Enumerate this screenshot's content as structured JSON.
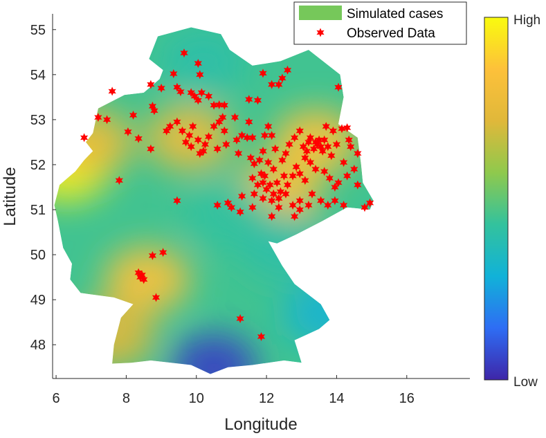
{
  "chart_data": {
    "type": "scatter",
    "title": "",
    "xlabel": "Longitude",
    "ylabel": "Latitude",
    "xlim": [
      5.9,
      17.8
    ],
    "ylim": [
      47.25,
      55.35
    ],
    "xticks": [
      6,
      8,
      10,
      12,
      14,
      16
    ],
    "yticks": [
      48,
      49,
      50,
      51,
      52,
      53,
      54,
      55
    ],
    "grid": false,
    "legend_position": "top-right",
    "legend": [
      "Simulated cases",
      "Observed Data"
    ],
    "colorbar": {
      "min_label": "Low",
      "max_label": "High"
    },
    "colors": {
      "legend_patch": "#76c85a",
      "marker": "#ff0000",
      "colormap": [
        "#3e26a8",
        "#2e6df4",
        "#11b2d8",
        "#33c29d",
        "#8fc94d",
        "#e0b83a",
        "#fdc13a",
        "#f9fb0e"
      ]
    },
    "surface": {
      "name": "Simulated cases",
      "border": [
        [
          9.85,
          55.05
        ],
        [
          10.7,
          54.9
        ],
        [
          10.95,
          54.55
        ],
        [
          11.6,
          54.2
        ],
        [
          12.4,
          54.3
        ],
        [
          13.2,
          54.55
        ],
        [
          14.1,
          54.0
        ],
        [
          14.2,
          53.5
        ],
        [
          14.05,
          52.9
        ],
        [
          14.6,
          52.6
        ],
        [
          14.7,
          52.0
        ],
        [
          14.75,
          51.6
        ],
        [
          15.05,
          51.2
        ],
        [
          14.95,
          51.0
        ],
        [
          14.3,
          51.05
        ],
        [
          13.6,
          50.75
        ],
        [
          12.85,
          50.45
        ],
        [
          12.3,
          50.25
        ],
        [
          12.05,
          50.3
        ],
        [
          12.45,
          49.75
        ],
        [
          12.8,
          49.35
        ],
        [
          13.55,
          48.9
        ],
        [
          13.8,
          48.55
        ],
        [
          13.5,
          48.35
        ],
        [
          12.8,
          48.1
        ],
        [
          13.0,
          47.6
        ],
        [
          12.5,
          47.65
        ],
        [
          11.6,
          47.55
        ],
        [
          10.9,
          47.5
        ],
        [
          10.4,
          47.35
        ],
        [
          9.85,
          47.55
        ],
        [
          8.7,
          47.65
        ],
        [
          8.15,
          47.6
        ],
        [
          7.6,
          47.58
        ],
        [
          7.65,
          48.0
        ],
        [
          7.85,
          48.6
        ],
        [
          8.2,
          48.9
        ],
        [
          7.65,
          49.05
        ],
        [
          6.7,
          49.15
        ],
        [
          6.4,
          49.45
        ],
        [
          6.45,
          49.8
        ],
        [
          6.2,
          50.15
        ],
        [
          6.05,
          50.75
        ],
        [
          5.95,
          51.1
        ],
        [
          6.1,
          51.55
        ],
        [
          6.55,
          51.85
        ],
        [
          6.8,
          52.1
        ],
        [
          7.05,
          52.3
        ],
        [
          6.85,
          52.5
        ],
        [
          7.05,
          52.7
        ],
        [
          7.2,
          53.25
        ],
        [
          7.95,
          53.55
        ],
        [
          8.5,
          53.6
        ],
        [
          8.95,
          53.9
        ],
        [
          9.05,
          54.1
        ],
        [
          8.65,
          54.35
        ],
        [
          8.9,
          54.85
        ],
        [
          9.85,
          55.05
        ]
      ],
      "hotspots": [
        {
          "lon": 6.3,
          "lat": 51.9,
          "level": 0.98
        },
        {
          "lon": 7.0,
          "lat": 52.5,
          "level": 0.78
        },
        {
          "lon": 8.6,
          "lat": 49.45,
          "level": 0.85
        },
        {
          "lon": 9.8,
          "lat": 52.6,
          "level": 0.8
        },
        {
          "lon": 12.3,
          "lat": 51.4,
          "level": 0.85
        },
        {
          "lon": 13.4,
          "lat": 52.5,
          "level": 0.85
        },
        {
          "lon": 10.5,
          "lat": 47.5,
          "level": 0.05
        },
        {
          "lon": 10.9,
          "lat": 50.9,
          "level": 0.42
        },
        {
          "lon": 10.2,
          "lat": 54.3,
          "level": 0.4
        },
        {
          "lon": 12.5,
          "lat": 50.2,
          "level": 0.4
        },
        {
          "lon": 7.6,
          "lat": 48.2,
          "level": 0.72
        },
        {
          "lon": 13.7,
          "lat": 48.7,
          "level": 0.3
        }
      ],
      "base_level": 0.45
    },
    "series": [
      {
        "name": "Observed Data",
        "points": [
          [
            9.65,
            54.48
          ],
          [
            10.05,
            54.25
          ],
          [
            9.35,
            54.02
          ],
          [
            10.1,
            54.0
          ],
          [
            11.9,
            54.03
          ],
          [
            12.15,
            53.78
          ],
          [
            12.35,
            53.78
          ],
          [
            12.45,
            53.92
          ],
          [
            12.6,
            54.1
          ],
          [
            14.05,
            53.72
          ],
          [
            7.6,
            53.63
          ],
          [
            8.7,
            53.78
          ],
          [
            9.0,
            53.7
          ],
          [
            9.45,
            53.72
          ],
          [
            9.55,
            53.62
          ],
          [
            9.85,
            53.6
          ],
          [
            9.95,
            53.52
          ],
          [
            10.15,
            53.6
          ],
          [
            10.35,
            53.52
          ],
          [
            10.05,
            53.43
          ],
          [
            10.5,
            53.32
          ],
          [
            10.65,
            53.33
          ],
          [
            10.8,
            53.32
          ],
          [
            11.5,
            53.45
          ],
          [
            11.75,
            53.43
          ],
          [
            8.2,
            53.1
          ],
          [
            8.75,
            53.3
          ],
          [
            8.8,
            53.2
          ],
          [
            7.2,
            53.05
          ],
          [
            7.45,
            53.0
          ],
          [
            6.8,
            52.6
          ],
          [
            8.05,
            52.73
          ],
          [
            8.35,
            52.58
          ],
          [
            8.7,
            52.35
          ],
          [
            9.15,
            52.75
          ],
          [
            9.25,
            52.85
          ],
          [
            9.45,
            52.95
          ],
          [
            9.6,
            52.75
          ],
          [
            9.7,
            52.5
          ],
          [
            9.8,
            52.65
          ],
          [
            9.85,
            52.4
          ],
          [
            9.9,
            52.85
          ],
          [
            10.05,
            52.55
          ],
          [
            10.1,
            52.25
          ],
          [
            10.2,
            52.3
          ],
          [
            10.25,
            52.45
          ],
          [
            10.35,
            52.62
          ],
          [
            10.5,
            52.85
          ],
          [
            10.6,
            52.35
          ],
          [
            10.65,
            52.95
          ],
          [
            10.75,
            53.05
          ],
          [
            10.8,
            52.75
          ],
          [
            10.85,
            52.45
          ],
          [
            11.1,
            53.05
          ],
          [
            11.15,
            52.55
          ],
          [
            11.2,
            52.25
          ],
          [
            11.3,
            52.65
          ],
          [
            11.45,
            52.6
          ],
          [
            11.5,
            52.95
          ],
          [
            11.6,
            52.6
          ],
          [
            11.55,
            52.15
          ],
          [
            11.65,
            52.02
          ],
          [
            11.9,
            52.3
          ],
          [
            11.95,
            52.65
          ],
          [
            12.05,
            52.85
          ],
          [
            12.15,
            52.65
          ],
          [
            12.25,
            52.35
          ],
          [
            12.45,
            52.1
          ],
          [
            12.55,
            52.25
          ],
          [
            12.65,
            52.45
          ],
          [
            12.8,
            52.6
          ],
          [
            12.95,
            52.75
          ],
          [
            13.05,
            52.4
          ],
          [
            13.1,
            52.15
          ],
          [
            13.15,
            52.3
          ],
          [
            13.2,
            52.5
          ],
          [
            13.25,
            52.6
          ],
          [
            13.35,
            52.35
          ],
          [
            13.4,
            52.5
          ],
          [
            13.45,
            52.45
          ],
          [
            13.5,
            52.55
          ],
          [
            13.55,
            52.4
          ],
          [
            13.6,
            52.3
          ],
          [
            13.65,
            52.55
          ],
          [
            13.7,
            52.85
          ],
          [
            13.75,
            52.4
          ],
          [
            13.85,
            52.2
          ],
          [
            13.9,
            52.75
          ],
          [
            14.0,
            52.45
          ],
          [
            14.2,
            52.05
          ],
          [
            14.35,
            52.55
          ],
          [
            14.4,
            52.4
          ],
          [
            14.6,
            52.25
          ],
          [
            14.3,
            52.82
          ],
          [
            14.15,
            52.8
          ],
          [
            13.25,
            52.05
          ],
          [
            12.85,
            51.95
          ],
          [
            12.75,
            51.75
          ],
          [
            12.95,
            51.8
          ],
          [
            13.1,
            51.65
          ],
          [
            13.4,
            51.9
          ],
          [
            13.65,
            51.85
          ],
          [
            13.8,
            51.7
          ],
          [
            13.95,
            51.5
          ],
          [
            14.05,
            51.6
          ],
          [
            14.3,
            51.75
          ],
          [
            14.5,
            51.9
          ],
          [
            14.6,
            51.55
          ],
          [
            14.8,
            51.05
          ],
          [
            14.95,
            51.15
          ],
          [
            14.2,
            51.1
          ],
          [
            13.95,
            51.2
          ],
          [
            13.75,
            51.1
          ],
          [
            13.55,
            51.2
          ],
          [
            13.3,
            51.35
          ],
          [
            13.2,
            51.1
          ],
          [
            12.95,
            51.2
          ],
          [
            12.75,
            51.1
          ],
          [
            12.95,
            51.0
          ],
          [
            12.8,
            50.85
          ],
          [
            12.15,
            50.85
          ],
          [
            12.35,
            51.05
          ],
          [
            12.55,
            51.35
          ],
          [
            12.0,
            51.45
          ],
          [
            11.9,
            51.25
          ],
          [
            11.75,
            51.55
          ],
          [
            11.6,
            51.05
          ],
          [
            11.3,
            51.3
          ],
          [
            11.25,
            50.95
          ],
          [
            11.0,
            51.05
          ],
          [
            10.9,
            51.15
          ],
          [
            10.6,
            51.1
          ],
          [
            11.6,
            51.7
          ],
          [
            11.85,
            51.8
          ],
          [
            12.2,
            51.35
          ],
          [
            12.3,
            51.6
          ],
          [
            12.4,
            51.4
          ],
          [
            12.1,
            51.55
          ],
          [
            11.95,
            51.75
          ],
          [
            12.6,
            51.55
          ],
          [
            12.5,
            51.75
          ],
          [
            12.2,
            51.9
          ],
          [
            12.05,
            52.05
          ],
          [
            11.8,
            52.1
          ],
          [
            11.9,
            51.6
          ],
          [
            12.35,
            51.25
          ],
          [
            12.15,
            51.2
          ],
          [
            11.65,
            51.35
          ],
          [
            9.45,
            51.2
          ],
          [
            7.8,
            51.65
          ],
          [
            8.75,
            49.98
          ],
          [
            9.05,
            50.05
          ],
          [
            8.35,
            49.6
          ],
          [
            8.4,
            49.5
          ],
          [
            8.5,
            49.45
          ],
          [
            8.45,
            49.55
          ],
          [
            8.85,
            49.05
          ],
          [
            11.25,
            48.58
          ],
          [
            11.85,
            48.18
          ]
        ]
      }
    ]
  }
}
